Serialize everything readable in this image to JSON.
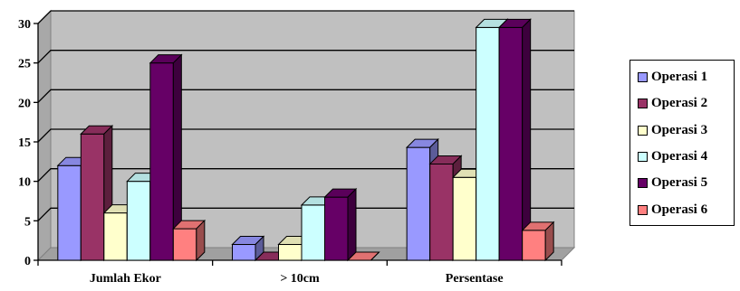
{
  "chart_data": {
    "type": "bar",
    "style": "3d-clustered-column",
    "categories": [
      "Jumlah Ekor",
      "> 10cm",
      "Persentase"
    ],
    "series": [
      {
        "name": "Operasi 1",
        "color": "#9999FF",
        "values": [
          12,
          2,
          14.3
        ]
      },
      {
        "name": "Operasi 2",
        "color": "#993366",
        "values": [
          16,
          0,
          12.2
        ]
      },
      {
        "name": "Operasi 3",
        "color": "#FFFFCC",
        "values": [
          6,
          2,
          10.5
        ]
      },
      {
        "name": "Operasi 4",
        "color": "#CCFFFF",
        "values": [
          10,
          7,
          29.5
        ]
      },
      {
        "name": "Operasi 5",
        "color": "#660066",
        "values": [
          25,
          8,
          29.5
        ]
      },
      {
        "name": "Operasi 6",
        "color": "#FF8080",
        "values": [
          4,
          0,
          3.8
        ]
      }
    ],
    "yticks": [
      "0",
      "5",
      "10",
      "15",
      "20",
      "25",
      "30"
    ],
    "ylim": [
      0,
      30
    ],
    "grid": true,
    "plot_background": "#C0C0C0",
    "legend_position": "right"
  }
}
